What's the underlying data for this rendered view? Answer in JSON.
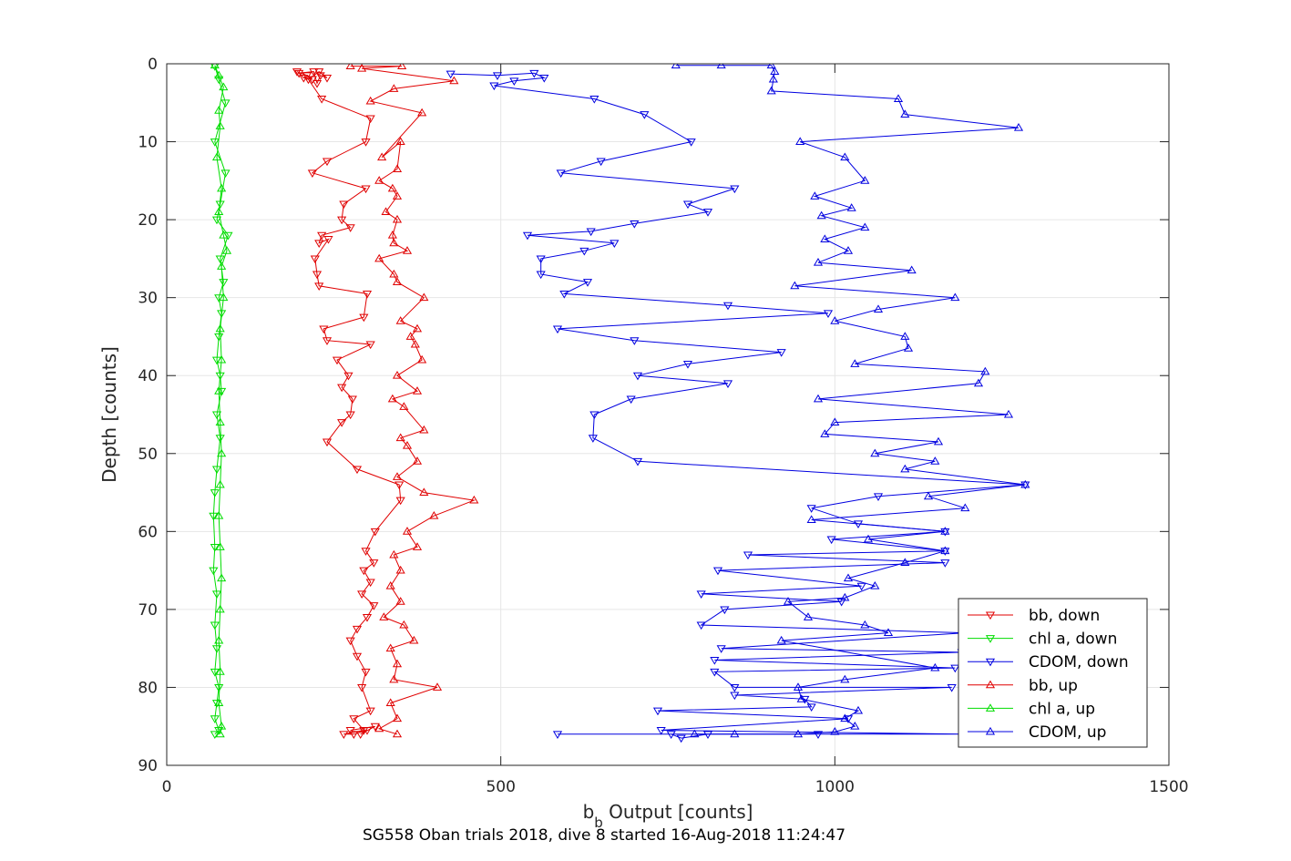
{
  "chart_data": {
    "type": "line",
    "xlabel_main": "b",
    "xlabel_sub": "b",
    "xlabel_rest": " Output [counts]",
    "ylabel": "Depth [counts]",
    "caption": "SG558 Oban trials 2018, dive 8 started 16-Aug-2018 11:24:47",
    "xlim": [
      0,
      1500
    ],
    "ylim": [
      0,
      90
    ],
    "y_reversed": true,
    "grid": true,
    "legend_position": "bottom-right",
    "xticks": [
      "0",
      "500",
      "1000",
      "1500"
    ],
    "yticks": [
      "0",
      "10",
      "20",
      "30",
      "40",
      "50",
      "60",
      "70",
      "80",
      "90"
    ],
    "series": [
      {
        "name": "bb, down",
        "color": "#e00000",
        "marker": "triangle-down",
        "points": [
          [
            195,
            1
          ],
          [
            210,
            1.5
          ],
          [
            218,
            2
          ],
          [
            205,
            1.8
          ],
          [
            198,
            1.2
          ],
          [
            220,
            1
          ],
          [
            225,
            2.5
          ],
          [
            230,
            1.5
          ],
          [
            240,
            1.8
          ],
          [
            228,
            1
          ],
          [
            212,
            2
          ],
          [
            232,
            4.5
          ],
          [
            305,
            7
          ],
          [
            298,
            10
          ],
          [
            240,
            12.5
          ],
          [
            218,
            14
          ],
          [
            298,
            16
          ],
          [
            265,
            18
          ],
          [
            262,
            20
          ],
          [
            275,
            21
          ],
          [
            232,
            22
          ],
          [
            228,
            23
          ],
          [
            242,
            22.5
          ],
          [
            222,
            25
          ],
          [
            225,
            27
          ],
          [
            228,
            28.5
          ],
          [
            300,
            29.5
          ],
          [
            295,
            32.5
          ],
          [
            235,
            34
          ],
          [
            240,
            35.5
          ],
          [
            305,
            36
          ],
          [
            255,
            38
          ],
          [
            272,
            40
          ],
          [
            262,
            41.5
          ],
          [
            278,
            43
          ],
          [
            275,
            45
          ],
          [
            262,
            46
          ],
          [
            240,
            48.5
          ],
          [
            285,
            52
          ],
          [
            348,
            54
          ],
          [
            350,
            56
          ],
          [
            312,
            60
          ],
          [
            298,
            62.5
          ],
          [
            310,
            64
          ],
          [
            295,
            65
          ],
          [
            305,
            66.5
          ],
          [
            292,
            68
          ],
          [
            310,
            69.5
          ],
          [
            300,
            71
          ],
          [
            285,
            72.5
          ],
          [
            275,
            74
          ],
          [
            285,
            76
          ],
          [
            298,
            78
          ],
          [
            292,
            80
          ],
          [
            305,
            83
          ],
          [
            280,
            84
          ],
          [
            295,
            85.5
          ],
          [
            265,
            86
          ],
          [
            280,
            86
          ],
          [
            300,
            85.5
          ],
          [
            290,
            86
          ],
          [
            312,
            85
          ],
          [
            275,
            85.5
          ]
        ]
      },
      {
        "name": "chl a, down",
        "color": "#00dd00",
        "marker": "triangle-down",
        "points": [
          [
            72,
            0.3
          ],
          [
            78,
            2
          ],
          [
            88,
            5
          ],
          [
            72,
            10
          ],
          [
            88,
            14
          ],
          [
            80,
            18
          ],
          [
            75,
            20
          ],
          [
            92,
            22
          ],
          [
            80,
            25
          ],
          [
            85,
            28
          ],
          [
            78,
            30
          ],
          [
            82,
            32
          ],
          [
            78,
            35
          ],
          [
            75,
            38
          ],
          [
            80,
            40
          ],
          [
            82,
            42
          ],
          [
            75,
            45
          ],
          [
            80,
            48
          ],
          [
            75,
            52
          ],
          [
            72,
            55
          ],
          [
            70,
            58
          ],
          [
            72,
            62
          ],
          [
            70,
            65
          ],
          [
            75,
            68
          ],
          [
            72,
            72
          ],
          [
            75,
            75
          ],
          [
            72,
            78
          ],
          [
            78,
            80
          ],
          [
            75,
            82
          ],
          [
            72,
            84
          ],
          [
            78,
            85.5
          ],
          [
            72,
            86
          ]
        ]
      },
      {
        "name": "CDOM, down",
        "color": "#0000e0",
        "marker": "triangle-down",
        "points": [
          [
            425,
            1.3
          ],
          [
            495,
            1.5
          ],
          [
            550,
            1.2
          ],
          [
            565,
            1.8
          ],
          [
            520,
            2.2
          ],
          [
            490,
            2.8
          ],
          [
            640,
            4.5
          ],
          [
            715,
            6.5
          ],
          [
            785,
            10
          ],
          [
            650,
            12.5
          ],
          [
            590,
            14
          ],
          [
            850,
            16
          ],
          [
            780,
            18
          ],
          [
            810,
            19
          ],
          [
            700,
            20.5
          ],
          [
            635,
            21.5
          ],
          [
            540,
            22
          ],
          [
            670,
            23
          ],
          [
            625,
            24
          ],
          [
            560,
            25
          ],
          [
            560,
            27
          ],
          [
            630,
            28
          ],
          [
            595,
            29.5
          ],
          [
            840,
            31
          ],
          [
            990,
            32
          ],
          [
            585,
            34
          ],
          [
            700,
            35.5
          ],
          [
            920,
            37
          ],
          [
            780,
            38.5
          ],
          [
            705,
            40
          ],
          [
            840,
            41
          ],
          [
            695,
            43
          ],
          [
            640,
            45
          ],
          [
            638,
            48
          ],
          [
            705,
            51
          ],
          [
            1285,
            54
          ],
          [
            1065,
            55.5
          ],
          [
            965,
            57
          ],
          [
            1035,
            59
          ],
          [
            1165,
            60
          ],
          [
            995,
            61
          ],
          [
            1165,
            62.5
          ],
          [
            870,
            63
          ],
          [
            1165,
            64
          ],
          [
            825,
            65
          ],
          [
            1040,
            67
          ],
          [
            800,
            68
          ],
          [
            1010,
            69
          ],
          [
            835,
            70
          ],
          [
            800,
            72
          ],
          [
            1195,
            73
          ],
          [
            830,
            75
          ],
          [
            1190,
            75.5
          ],
          [
            820,
            76.5
          ],
          [
            1180,
            77.5
          ],
          [
            820,
            78
          ],
          [
            850,
            80
          ],
          [
            1175,
            80
          ],
          [
            850,
            81
          ],
          [
            955,
            81.5
          ],
          [
            965,
            82.5
          ],
          [
            735,
            83
          ],
          [
            1020,
            84
          ],
          [
            740,
            85.5
          ],
          [
            1195,
            86
          ],
          [
            755,
            86
          ],
          [
            770,
            86.5
          ],
          [
            810,
            86
          ],
          [
            975,
            86
          ],
          [
            585,
            86
          ]
        ]
      },
      {
        "name": "bb, up",
        "color": "#e00000",
        "marker": "triangle-up",
        "points": [
          [
            275,
            0.3
          ],
          [
            352,
            0.3
          ],
          [
            292,
            0.6
          ],
          [
            430,
            2.2
          ],
          [
            340,
            3.2
          ],
          [
            305,
            4.8
          ],
          [
            382,
            6.3
          ],
          [
            322,
            12
          ],
          [
            350,
            10
          ],
          [
            345,
            13.5
          ],
          [
            318,
            15
          ],
          [
            338,
            16
          ],
          [
            345,
            17
          ],
          [
            328,
            19
          ],
          [
            345,
            20
          ],
          [
            338,
            22
          ],
          [
            340,
            23
          ],
          [
            360,
            24
          ],
          [
            318,
            25
          ],
          [
            340,
            27
          ],
          [
            345,
            28
          ],
          [
            385,
            30
          ],
          [
            350,
            33
          ],
          [
            375,
            34
          ],
          [
            365,
            35
          ],
          [
            372,
            36
          ],
          [
            382,
            38
          ],
          [
            345,
            40
          ],
          [
            375,
            42
          ],
          [
            338,
            43
          ],
          [
            355,
            44
          ],
          [
            385,
            47
          ],
          [
            350,
            48
          ],
          [
            360,
            49
          ],
          [
            375,
            51
          ],
          [
            345,
            53
          ],
          [
            385,
            55
          ],
          [
            460,
            56
          ],
          [
            400,
            58
          ],
          [
            360,
            60
          ],
          [
            375,
            62
          ],
          [
            340,
            63
          ],
          [
            350,
            65
          ],
          [
            335,
            67
          ],
          [
            350,
            69
          ],
          [
            325,
            71
          ],
          [
            355,
            72
          ],
          [
            370,
            74
          ],
          [
            335,
            75
          ],
          [
            345,
            77
          ],
          [
            340,
            79
          ],
          [
            405,
            80
          ],
          [
            335,
            82
          ],
          [
            345,
            84
          ],
          [
            318,
            85.3
          ],
          [
            345,
            86
          ]
        ]
      },
      {
        "name": "chl a, up",
        "color": "#00dd00",
        "marker": "triangle-up",
        "points": [
          [
            72,
            0.2
          ],
          [
            78,
            1.5
          ],
          [
            85,
            3
          ],
          [
            78,
            6
          ],
          [
            80,
            8
          ],
          [
            75,
            12
          ],
          [
            82,
            16
          ],
          [
            78,
            19
          ],
          [
            85,
            22
          ],
          [
            90,
            24
          ],
          [
            82,
            26
          ],
          [
            85,
            30
          ],
          [
            80,
            34
          ],
          [
            82,
            38
          ],
          [
            78,
            42
          ],
          [
            80,
            46
          ],
          [
            82,
            50
          ],
          [
            80,
            54
          ],
          [
            78,
            58
          ],
          [
            80,
            62
          ],
          [
            82,
            66
          ],
          [
            80,
            70
          ],
          [
            78,
            74
          ],
          [
            80,
            78
          ],
          [
            78,
            82
          ],
          [
            82,
            85
          ],
          [
            80,
            86
          ]
        ]
      },
      {
        "name": "CDOM, up",
        "color": "#0000e0",
        "marker": "triangle-up",
        "points": [
          [
            762,
            0.2
          ],
          [
            830,
            0.2
          ],
          [
            905,
            0.2
          ],
          [
            910,
            1
          ],
          [
            908,
            2
          ],
          [
            905,
            3.5
          ],
          [
            1095,
            4.5
          ],
          [
            1105,
            6.5
          ],
          [
            1275,
            8.2
          ],
          [
            948,
            10
          ],
          [
            1015,
            12
          ],
          [
            1045,
            15
          ],
          [
            970,
            17
          ],
          [
            1025,
            18.5
          ],
          [
            980,
            19.5
          ],
          [
            1045,
            21
          ],
          [
            985,
            22.5
          ],
          [
            1020,
            24
          ],
          [
            975,
            25.5
          ],
          [
            1115,
            26.5
          ],
          [
            940,
            28.5
          ],
          [
            1180,
            30
          ],
          [
            1065,
            31.5
          ],
          [
            1000,
            33
          ],
          [
            1105,
            35
          ],
          [
            1110,
            36.5
          ],
          [
            1030,
            38.5
          ],
          [
            1225,
            39.5
          ],
          [
            1215,
            41
          ],
          [
            975,
            43
          ],
          [
            1260,
            45
          ],
          [
            1000,
            46
          ],
          [
            985,
            47.5
          ],
          [
            1155,
            48.5
          ],
          [
            1060,
            50
          ],
          [
            1150,
            51
          ],
          [
            1105,
            52
          ],
          [
            1285,
            54
          ],
          [
            1140,
            55.5
          ],
          [
            1195,
            57
          ],
          [
            965,
            58.5
          ],
          [
            1165,
            60
          ],
          [
            1050,
            61
          ],
          [
            1165,
            62.5
          ],
          [
            1105,
            64
          ],
          [
            1020,
            66
          ],
          [
            1060,
            67
          ],
          [
            1015,
            68.5
          ],
          [
            930,
            69
          ],
          [
            960,
            71
          ],
          [
            1045,
            72
          ],
          [
            1080,
            73
          ],
          [
            920,
            74
          ],
          [
            1150,
            77.5
          ],
          [
            1015,
            79
          ],
          [
            945,
            80
          ],
          [
            950,
            81.5
          ],
          [
            1035,
            83
          ],
          [
            1015,
            84
          ],
          [
            1030,
            85
          ],
          [
            1000,
            85.7
          ],
          [
            945,
            86
          ],
          [
            850,
            86
          ],
          [
            790,
            86
          ]
        ]
      }
    ]
  }
}
